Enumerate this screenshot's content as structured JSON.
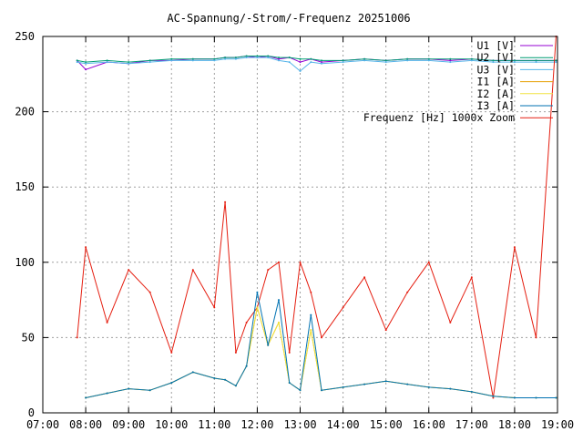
{
  "chart_data": {
    "type": "line",
    "title": "AC-Spannung/-Strom/-Frequenz 20251006",
    "xlabel": "",
    "ylabel": "",
    "xlim": [
      "07:00",
      "19:00"
    ],
    "ylim": [
      0,
      250
    ],
    "grid": true,
    "legend_position": "top-right",
    "x_ticks": [
      "07:00",
      "08:00",
      "09:00",
      "10:00",
      "11:00",
      "12:00",
      "13:00",
      "14:00",
      "15:00",
      "16:00",
      "17:00",
      "18:00",
      "19:00"
    ],
    "y_ticks": [
      0,
      50,
      100,
      150,
      200,
      250
    ],
    "x": [
      "07:48",
      "08:00",
      "08:30",
      "09:00",
      "09:30",
      "10:00",
      "10:30",
      "11:00",
      "11:15",
      "11:30",
      "11:45",
      "12:00",
      "12:15",
      "12:30",
      "12:45",
      "13:00",
      "13:15",
      "13:30",
      "14:00",
      "14:30",
      "15:00",
      "15:30",
      "16:00",
      "16:30",
      "17:00",
      "17:30",
      "18:00",
      "18:30",
      "18:58"
    ],
    "series": [
      {
        "name": "U1 [V]",
        "color": "#9400d3",
        "values": [
          234,
          228,
          233,
          232,
          234,
          234,
          235,
          235,
          236,
          236,
          237,
          236,
          237,
          235,
          236,
          233,
          235,
          233,
          234,
          235,
          234,
          235,
          235,
          234,
          235,
          234,
          234,
          234,
          234
        ]
      },
      {
        "name": "U2 [V]",
        "color": "#009e73",
        "values": [
          234,
          233,
          234,
          233,
          234,
          235,
          235,
          235,
          236,
          236,
          237,
          237,
          237,
          236,
          236,
          235,
          235,
          234,
          234,
          235,
          234,
          235,
          235,
          235,
          235,
          234,
          234,
          234,
          234
        ]
      },
      {
        "name": "U3 [V]",
        "color": "#56b4e9",
        "values": [
          233,
          232,
          233,
          232,
          233,
          234,
          234,
          234,
          235,
          235,
          236,
          236,
          236,
          234,
          233,
          227,
          233,
          232,
          233,
          234,
          233,
          234,
          234,
          233,
          234,
          233,
          233,
          233,
          233
        ]
      },
      {
        "name": "I1 [A]",
        "color": "#e69f00",
        "values": [
          null,
          10,
          13,
          16,
          15,
          20,
          27,
          23,
          22,
          18,
          31,
          70,
          45,
          60,
          20,
          15,
          55,
          15,
          17,
          19,
          21,
          19,
          17,
          16,
          14,
          11,
          10,
          10,
          10
        ]
      },
      {
        "name": "I2 [A]",
        "color": "#f0e442",
        "values": [
          null,
          10,
          13,
          16,
          15,
          20,
          27,
          23,
          22,
          18,
          31,
          70,
          45,
          60,
          20,
          15,
          55,
          15,
          17,
          19,
          21,
          19,
          17,
          16,
          14,
          11,
          10,
          10,
          10
        ]
      },
      {
        "name": "I3 [A]",
        "color": "#0072b2",
        "values": [
          null,
          10,
          13,
          16,
          15,
          20,
          27,
          23,
          22,
          18,
          31,
          80,
          45,
          75,
          20,
          15,
          65,
          15,
          17,
          19,
          21,
          19,
          17,
          16,
          14,
          11,
          10,
          10,
          10
        ]
      },
      {
        "name": "Frequenz [Hz] 1000x Zoom",
        "color": "#e51e10",
        "values": [
          50,
          110,
          60,
          95,
          80,
          40,
          95,
          70,
          140,
          40,
          60,
          70,
          95,
          100,
          40,
          100,
          80,
          50,
          70,
          90,
          55,
          80,
          100,
          60,
          90,
          10,
          110,
          50,
          250
        ]
      }
    ]
  }
}
